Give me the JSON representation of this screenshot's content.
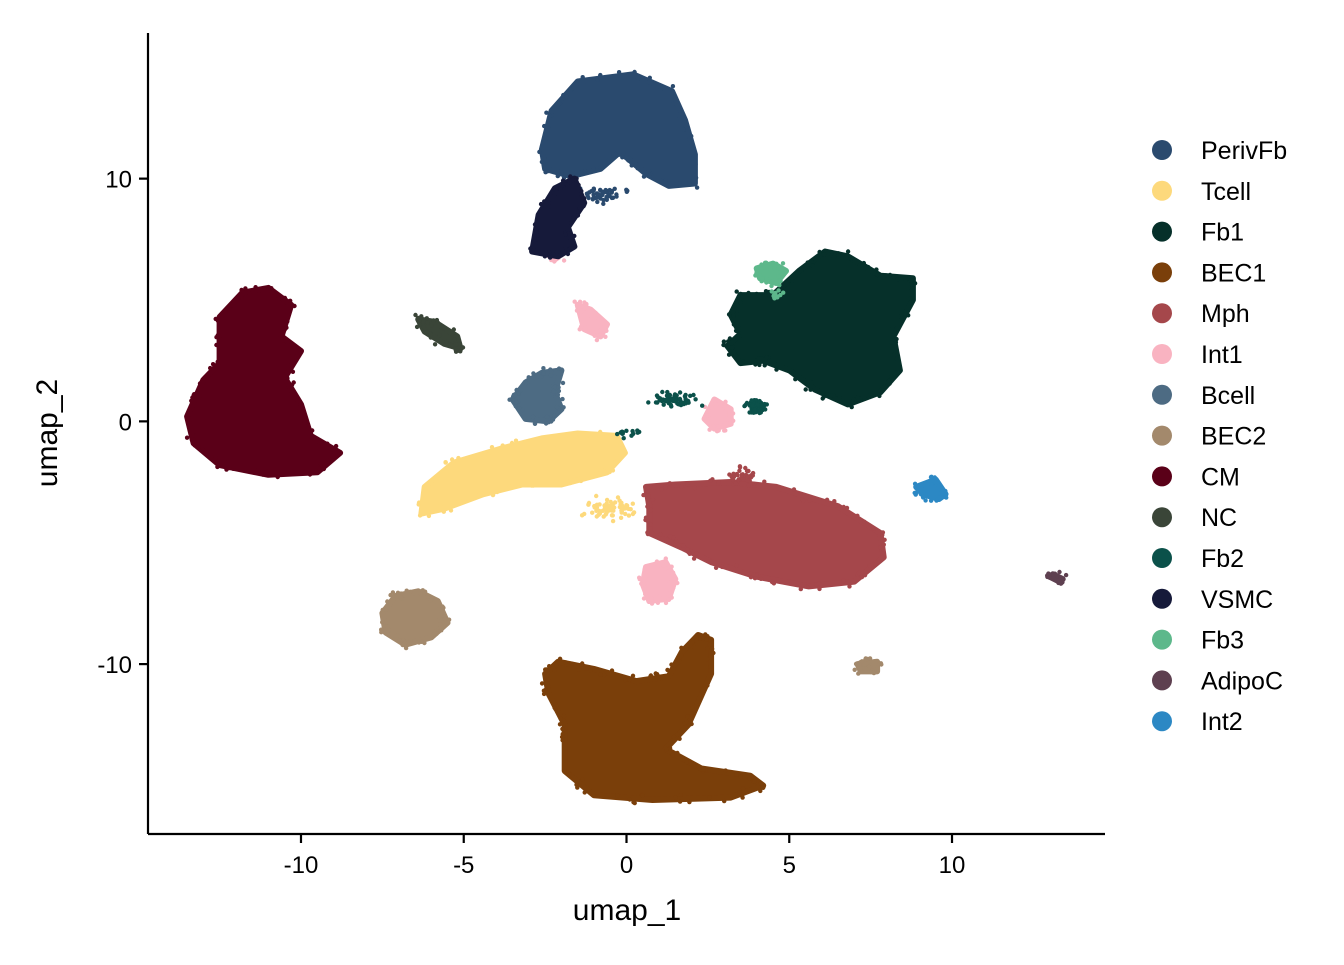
{
  "chart_data": {
    "type": "scatter",
    "title": "",
    "xlabel": "umap_1",
    "ylabel": "umap_2",
    "xlim": [
      -14.7,
      14.7
    ],
    "ylim": [
      -17,
      16
    ],
    "xticks": [
      -10,
      -5,
      0,
      5,
      10
    ],
    "xtick_labels": [
      "-10",
      "-5",
      "0",
      "5",
      "10"
    ],
    "yticks": [
      -10,
      0,
      10
    ],
    "ytick_labels": [
      "-10",
      "0",
      "10"
    ],
    "grid": false,
    "legend_position": "right",
    "series": [
      {
        "name": "PerivFb",
        "color": "#2A4A6E",
        "regions": [
          {
            "shape": "blob",
            "points": [
              [
                -2.6,
                11.2
              ],
              [
                -2.3,
                12.8
              ],
              [
                -1.5,
                14.0
              ],
              [
                0.2,
                14.3
              ],
              [
                1.4,
                13.6
              ],
              [
                1.8,
                12.4
              ],
              [
                2.1,
                11.0
              ],
              [
                2.1,
                9.8
              ],
              [
                1.3,
                9.7
              ],
              [
                0.6,
                10.2
              ],
              [
                -0.2,
                11.1
              ],
              [
                -0.8,
                10.4
              ],
              [
                -1.7,
                10.1
              ],
              [
                -2.5,
                10.4
              ]
            ]
          },
          {
            "shape": "scatter",
            "count": 60,
            "center": [
              -0.8,
              9.3
            ],
            "spread": [
              1.1,
              0.5
            ]
          }
        ]
      },
      {
        "name": "Tcell",
        "color": "#FDD97C",
        "regions": [
          {
            "shape": "blob",
            "points": [
              [
                -6.3,
                -3.8
              ],
              [
                -6.2,
                -2.7
              ],
              [
                -5.3,
                -1.7
              ],
              [
                -3.8,
                -1.1
              ],
              [
                -2.6,
                -0.7
              ],
              [
                -1.5,
                -0.5
              ],
              [
                -0.3,
                -0.6
              ],
              [
                -0.05,
                -1.3
              ],
              [
                -0.6,
                -2.1
              ],
              [
                -2.0,
                -2.6
              ],
              [
                -3.2,
                -2.6
              ],
              [
                -4.4,
                -3.0
              ],
              [
                -5.6,
                -3.6
              ]
            ]
          },
          {
            "shape": "scatter",
            "count": 70,
            "center": [
              -0.5,
              -3.6
            ],
            "spread": [
              1.1,
              0.6
            ]
          }
        ]
      },
      {
        "name": "Fb1",
        "color": "#06302A",
        "regions": [
          {
            "shape": "blob",
            "points": [
              [
                3.1,
                3.1
              ],
              [
                3.5,
                3.6
              ],
              [
                3.2,
                4.4
              ],
              [
                3.5,
                5.2
              ],
              [
                4.5,
                5.2
              ],
              [
                5.3,
                6.2
              ],
              [
                6.1,
                7.0
              ],
              [
                6.8,
                6.8
              ],
              [
                7.8,
                6.0
              ],
              [
                8.8,
                5.9
              ],
              [
                8.8,
                5.0
              ],
              [
                8.2,
                3.5
              ],
              [
                8.4,
                2.1
              ],
              [
                7.8,
                1.2
              ],
              [
                6.8,
                0.7
              ],
              [
                5.8,
                1.3
              ],
              [
                5.0,
                2.1
              ],
              [
                4.2,
                2.5
              ],
              [
                3.5,
                2.4
              ]
            ]
          }
        ]
      },
      {
        "name": "BEC1",
        "color": "#7A3F0A",
        "regions": [
          {
            "shape": "blob",
            "points": [
              [
                -2.5,
                -10.4
              ],
              [
                -2.1,
                -9.9
              ],
              [
                -1.0,
                -10.2
              ],
              [
                0.3,
                -10.7
              ],
              [
                1.3,
                -10.5
              ],
              [
                1.7,
                -9.5
              ],
              [
                2.2,
                -8.8
              ],
              [
                2.6,
                -9.0
              ],
              [
                2.6,
                -10.4
              ],
              [
                1.9,
                -12.5
              ],
              [
                1.2,
                -13.5
              ],
              [
                2.3,
                -14.3
              ],
              [
                3.8,
                -14.6
              ],
              [
                4.2,
                -15.0
              ],
              [
                3.2,
                -15.5
              ],
              [
                0.8,
                -15.6
              ],
              [
                -1.0,
                -15.4
              ],
              [
                -1.9,
                -14.4
              ],
              [
                -1.9,
                -12.5
              ],
              [
                -2.4,
                -11.2
              ]
            ]
          }
        ]
      },
      {
        "name": "Mph",
        "color": "#A5474B",
        "regions": [
          {
            "shape": "blob",
            "points": [
              [
                0.6,
                -2.7
              ],
              [
                1.5,
                -2.6
              ],
              [
                3.2,
                -2.5
              ],
              [
                4.6,
                -2.7
              ],
              [
                6.5,
                -3.5
              ],
              [
                7.8,
                -4.6
              ],
              [
                7.9,
                -5.6
              ],
              [
                7.0,
                -6.6
              ],
              [
                5.6,
                -6.8
              ],
              [
                4.0,
                -6.4
              ],
              [
                2.6,
                -5.8
              ],
              [
                1.7,
                -5.2
              ],
              [
                0.7,
                -4.6
              ],
              [
                0.7,
                -3.5
              ]
            ]
          },
          {
            "shape": "scatter",
            "count": 40,
            "center": [
              3.6,
              -2.2
            ],
            "spread": [
              0.6,
              0.4
            ]
          }
        ]
      },
      {
        "name": "Int1",
        "color": "#F9B3C1",
        "regions": [
          {
            "shape": "blob",
            "points": [
              [
                0.6,
                -6.0
              ],
              [
                1.2,
                -5.8
              ],
              [
                1.5,
                -6.5
              ],
              [
                1.3,
                -7.3
              ],
              [
                0.7,
                -7.4
              ],
              [
                0.5,
                -6.7
              ]
            ]
          },
          {
            "shape": "blob",
            "points": [
              [
                2.4,
                0.1
              ],
              [
                2.7,
                0.9
              ],
              [
                3.2,
                0.5
              ],
              [
                3.2,
                -0.1
              ],
              [
                2.7,
                -0.3
              ]
            ]
          },
          {
            "shape": "blob",
            "points": [
              [
                -1.5,
                4.8
              ],
              [
                -1.1,
                4.6
              ],
              [
                -0.6,
                4.0
              ],
              [
                -0.8,
                3.5
              ],
              [
                -1.3,
                3.8
              ]
            ]
          },
          {
            "shape": "scatter",
            "count": 25,
            "center": [
              -2.2,
              6.8
            ],
            "spread": [
              0.35,
              0.3
            ]
          }
        ]
      },
      {
        "name": "Bcell",
        "color": "#4D6B83",
        "regions": [
          {
            "shape": "blob",
            "points": [
              [
                -3.5,
                0.9
              ],
              [
                -3.1,
                1.6
              ],
              [
                -2.6,
                2.0
              ],
              [
                -2.0,
                2.1
              ],
              [
                -2.2,
                1.2
              ],
              [
                -2.0,
                0.5
              ],
              [
                -2.4,
                0.0
              ],
              [
                -3.1,
                0.1
              ]
            ]
          }
        ]
      },
      {
        "name": "BEC2",
        "color": "#A3896C",
        "regions": [
          {
            "shape": "blob",
            "points": [
              [
                -7.5,
                -7.9
              ],
              [
                -7.1,
                -7.2
              ],
              [
                -6.4,
                -7.0
              ],
              [
                -5.8,
                -7.4
              ],
              [
                -5.5,
                -8.3
              ],
              [
                -6.0,
                -8.9
              ],
              [
                -6.8,
                -9.2
              ],
              [
                -7.4,
                -8.7
              ]
            ]
          },
          {
            "shape": "blob",
            "points": [
              [
                7.1,
                -10.0
              ],
              [
                7.7,
                -9.9
              ],
              [
                7.7,
                -10.3
              ],
              [
                7.2,
                -10.3
              ]
            ]
          }
        ]
      },
      {
        "name": "CM",
        "color": "#5A0018",
        "regions": [
          {
            "shape": "blob",
            "points": [
              [
                -13.5,
                0.2
              ],
              [
                -13.0,
                1.7
              ],
              [
                -12.5,
                2.4
              ],
              [
                -12.5,
                4.3
              ],
              [
                -11.8,
                5.3
              ],
              [
                -11.0,
                5.5
              ],
              [
                -10.3,
                4.8
              ],
              [
                -10.6,
                3.5
              ],
              [
                -10.0,
                2.9
              ],
              [
                -10.5,
                1.8
              ],
              [
                -10.0,
                0.7
              ],
              [
                -9.7,
                -0.6
              ],
              [
                -8.8,
                -1.3
              ],
              [
                -9.5,
                -2.1
              ],
              [
                -11.0,
                -2.2
              ],
              [
                -12.5,
                -1.8
              ],
              [
                -13.3,
                -0.9
              ]
            ]
          }
        ]
      },
      {
        "name": "NC",
        "color": "#3A4538",
        "regions": [
          {
            "shape": "blob",
            "points": [
              [
                -6.4,
                4.2
              ],
              [
                -5.9,
                4.1
              ],
              [
                -5.2,
                3.5
              ],
              [
                -5.1,
                3.0
              ],
              [
                -5.6,
                3.2
              ],
              [
                -6.2,
                3.7
              ]
            ]
          }
        ]
      },
      {
        "name": "Fb2",
        "color": "#0B514A",
        "regions": [
          {
            "shape": "scatter",
            "count": 80,
            "center": [
              4.0,
              0.6
            ],
            "spread": [
              0.4,
              0.4
            ]
          },
          {
            "shape": "scatter",
            "count": 60,
            "center": [
              1.5,
              0.9
            ],
            "spread": [
              1.0,
              0.4
            ]
          },
          {
            "shape": "scatter",
            "count": 15,
            "center": [
              0.0,
              -0.5
            ],
            "spread": [
              0.6,
              0.3
            ]
          }
        ]
      },
      {
        "name": "VSMC",
        "color": "#161A3A",
        "regions": [
          {
            "shape": "blob",
            "points": [
              [
                -2.9,
                7.0
              ],
              [
                -2.7,
                8.5
              ],
              [
                -2.2,
                9.6
              ],
              [
                -1.6,
                10.0
              ],
              [
                -1.3,
                9.0
              ],
              [
                -1.8,
                8.0
              ],
              [
                -1.6,
                7.2
              ],
              [
                -2.1,
                6.8
              ]
            ]
          }
        ]
      },
      {
        "name": "Fb3",
        "color": "#5DB88B",
        "regions": [
          {
            "shape": "blob",
            "points": [
              [
                4.0,
                6.3
              ],
              [
                4.5,
                6.5
              ],
              [
                4.9,
                6.2
              ],
              [
                4.6,
                5.7
              ],
              [
                4.1,
                5.9
              ]
            ]
          },
          {
            "shape": "scatter",
            "count": 12,
            "center": [
              4.7,
              5.2
            ],
            "spread": [
              0.4,
              0.3
            ]
          }
        ]
      },
      {
        "name": "AdipoC",
        "color": "#5E4050",
        "regions": [
          {
            "shape": "blob",
            "points": [
              [
                13.1,
                -6.3
              ],
              [
                13.4,
                -6.5
              ],
              [
                13.3,
                -6.6
              ],
              [
                13.0,
                -6.4
              ]
            ]
          }
        ]
      },
      {
        "name": "Int2",
        "color": "#2C88C4",
        "regions": [
          {
            "shape": "blob",
            "points": [
              [
                8.9,
                -2.7
              ],
              [
                9.5,
                -2.4
              ],
              [
                9.8,
                -3.0
              ],
              [
                9.6,
                -3.2
              ],
              [
                9.1,
                -3.0
              ]
            ]
          }
        ]
      }
    ]
  }
}
